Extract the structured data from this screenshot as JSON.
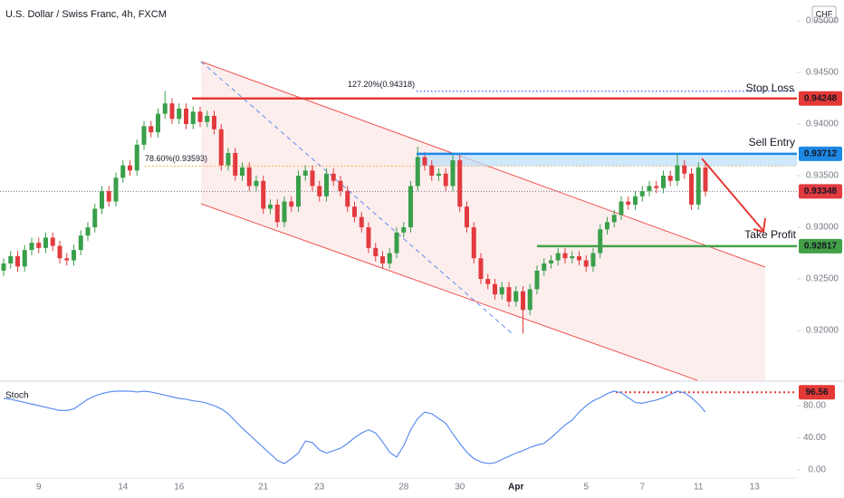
{
  "chart_data": [
    {
      "type": "candlestick",
      "title": "U.S. Dollar / Swiss Franc, 4h, FXCM",
      "currency": "CHF",
      "up_color": "#3a9f4a",
      "down_color": "#e23b3f",
      "categories": [
        null,
        null,
        null,
        null,
        null,
        "9",
        null,
        null,
        null,
        null,
        null,
        null,
        null,
        null,
        null,
        null,
        null,
        "14",
        null,
        null,
        null,
        null,
        null,
        null,
        null,
        "16",
        null,
        null,
        null,
        null,
        null,
        null,
        null,
        null,
        null,
        null,
        null,
        "21",
        null,
        null,
        null,
        null,
        null,
        null,
        null,
        "23",
        null,
        null,
        null,
        null,
        null,
        null,
        null,
        null,
        null,
        null,
        null,
        "28",
        null,
        null,
        null,
        null,
        null,
        null,
        null,
        "30",
        null,
        null,
        null,
        null,
        null,
        null,
        null,
        "Apr",
        null,
        null,
        null,
        null,
        null,
        null,
        null,
        null,
        null,
        "5",
        null,
        null,
        null,
        null,
        null,
        null,
        null,
        "7",
        null,
        null,
        null,
        null,
        null,
        null,
        null,
        "11",
        null,
        null,
        null,
        null,
        null,
        null,
        null,
        "13"
      ],
      "open": [
        0.9258,
        0.9265,
        0.9272,
        0.9262,
        0.9278,
        0.9285,
        0.928,
        0.929,
        0.9282,
        0.927,
        0.9268,
        0.9278,
        0.9292,
        0.93,
        0.9318,
        0.9335,
        0.9325,
        0.9348,
        0.936,
        0.9355,
        0.938,
        0.9398,
        0.9392,
        0.941,
        0.942,
        0.9405,
        0.9415,
        0.94,
        0.9412,
        0.9402,
        0.9408,
        0.9395,
        0.936,
        0.9372,
        0.935,
        0.9358,
        0.934,
        0.9345,
        0.9318,
        0.9322,
        0.9305,
        0.9325,
        0.932,
        0.935,
        0.9355,
        0.934,
        0.933,
        0.9352,
        0.9345,
        0.9335,
        0.932,
        0.931,
        0.93,
        0.928,
        0.9272,
        0.9265,
        0.9275,
        0.9295,
        0.93,
        0.934,
        0.9368,
        0.936,
        0.935,
        0.9352,
        0.934,
        0.9365,
        0.932,
        0.93,
        0.927,
        0.925,
        0.9245,
        0.9235,
        0.9242,
        0.9228,
        0.9238,
        0.922,
        0.924,
        0.9258,
        0.9265,
        0.9268,
        0.9275,
        0.927,
        0.9272,
        0.9268,
        0.9262,
        0.9275,
        0.9298,
        0.9305,
        0.9312,
        0.9325,
        0.9322,
        0.933,
        0.9335,
        0.934,
        0.9338,
        0.935,
        0.9345,
        0.936,
        0.9352,
        0.9322,
        0.9358,
        null,
        null,
        null,
        null,
        null,
        null,
        null
      ],
      "high": [
        0.927,
        0.9277,
        0.9277,
        0.9283,
        0.929,
        0.929,
        0.9295,
        0.9295,
        0.9287,
        0.9275,
        0.9283,
        0.9297,
        0.9305,
        0.9323,
        0.934,
        0.934,
        0.9353,
        0.9365,
        0.9365,
        0.9385,
        0.9403,
        0.9403,
        0.9415,
        0.9432,
        0.9425,
        0.942,
        0.942,
        0.9417,
        0.9417,
        0.9413,
        0.9413,
        0.94,
        0.9377,
        0.9377,
        0.9363,
        0.9363,
        0.935,
        0.935,
        0.9327,
        0.9327,
        0.933,
        0.933,
        0.9355,
        0.936,
        0.936,
        0.9345,
        0.9357,
        0.9357,
        0.935,
        0.934,
        0.9325,
        0.9315,
        0.9305,
        0.9285,
        0.9277,
        0.928,
        0.93,
        0.9305,
        0.9345,
        0.9378,
        0.9373,
        0.9365,
        0.9357,
        0.9357,
        0.9372,
        0.937,
        0.9325,
        0.9305,
        0.9275,
        0.9255,
        0.925,
        0.9247,
        0.9247,
        0.9243,
        0.9243,
        0.9245,
        0.9263,
        0.927,
        0.9273,
        0.928,
        0.928,
        0.9277,
        0.9277,
        0.9273,
        0.928,
        0.9303,
        0.931,
        0.9317,
        0.933,
        0.933,
        0.9335,
        0.934,
        0.9345,
        0.9345,
        0.9355,
        0.9355,
        0.9372,
        0.9365,
        0.9357,
        0.9363,
        0.9363,
        null,
        null,
        null,
        null,
        null,
        null,
        null
      ],
      "low": [
        0.9253,
        0.926,
        0.9257,
        0.9257,
        0.9273,
        0.9275,
        0.9275,
        0.9277,
        0.9265,
        0.9263,
        0.9263,
        0.9273,
        0.9287,
        0.9295,
        0.9313,
        0.932,
        0.932,
        0.9343,
        0.935,
        0.935,
        0.9375,
        0.9387,
        0.9387,
        0.9405,
        0.94,
        0.94,
        0.9395,
        0.9395,
        0.9397,
        0.9397,
        0.939,
        0.9355,
        0.9355,
        0.9345,
        0.9345,
        0.9335,
        0.9335,
        0.9313,
        0.9313,
        0.93,
        0.93,
        0.9315,
        0.9315,
        0.9345,
        0.9335,
        0.9325,
        0.9325,
        0.934,
        0.933,
        0.9315,
        0.9305,
        0.9295,
        0.9275,
        0.9267,
        0.926,
        0.926,
        0.927,
        0.929,
        0.9295,
        0.9335,
        0.9355,
        0.9345,
        0.9345,
        0.9335,
        0.9335,
        0.9315,
        0.9295,
        0.9265,
        0.9245,
        0.924,
        0.923,
        0.923,
        0.9223,
        0.9223,
        0.9197,
        0.9215,
        0.9235,
        0.9253,
        0.926,
        0.9263,
        0.9265,
        0.9265,
        0.9263,
        0.9257,
        0.9257,
        0.927,
        0.9293,
        0.93,
        0.9307,
        0.9317,
        0.9317,
        0.9325,
        0.933,
        0.9333,
        0.9333,
        0.934,
        0.934,
        0.9347,
        0.9317,
        0.9317,
        0.933,
        null,
        null,
        null,
        null,
        null,
        null,
        null
      ],
      "close": [
        0.9265,
        0.9272,
        0.9262,
        0.9278,
        0.9285,
        0.928,
        0.929,
        0.9282,
        0.927,
        0.9268,
        0.9278,
        0.9292,
        0.93,
        0.9318,
        0.9335,
        0.9325,
        0.9348,
        0.936,
        0.9355,
        0.938,
        0.9398,
        0.9392,
        0.941,
        0.942,
        0.9405,
        0.9415,
        0.94,
        0.9412,
        0.9402,
        0.9408,
        0.9395,
        0.936,
        0.9372,
        0.935,
        0.9358,
        0.934,
        0.9345,
        0.9318,
        0.9322,
        0.9305,
        0.9325,
        0.932,
        0.935,
        0.9355,
        0.934,
        0.933,
        0.9352,
        0.9345,
        0.9335,
        0.932,
        0.931,
        0.93,
        0.928,
        0.9272,
        0.9265,
        0.9275,
        0.9295,
        0.93,
        0.934,
        0.9368,
        0.936,
        0.935,
        0.9352,
        0.934,
        0.9365,
        0.932,
        0.93,
        0.927,
        0.925,
        0.9245,
        0.9235,
        0.9242,
        0.9228,
        0.9238,
        0.922,
        0.924,
        0.9258,
        0.9265,
        0.9268,
        0.9275,
        0.927,
        0.9272,
        0.9268,
        0.9262,
        0.9275,
        0.9298,
        0.9305,
        0.9312,
        0.9325,
        0.9322,
        0.933,
        0.9335,
        0.934,
        0.9338,
        0.935,
        0.9345,
        0.936,
        0.9352,
        0.9322,
        0.9358,
        0.93348,
        null,
        null,
        null,
        null,
        null,
        null,
        null
      ],
      "ylim": [
        0.91518,
        0.95202
      ],
      "yticks": [
        {
          "value": 0.92,
          "label": "0.92000"
        },
        {
          "value": 0.925,
          "label": "0.92500"
        },
        {
          "value": 0.93,
          "label": "0.93000"
        },
        {
          "value": 0.935,
          "label": "0.93500"
        },
        {
          "value": 0.94,
          "label": "0.94000"
        },
        {
          "value": 0.945,
          "label": "0.94500"
        },
        {
          "value": 0.95,
          "label": "0.95000"
        }
      ],
      "grid": false,
      "last_price": 0.93348,
      "last_color": "#e23b3f",
      "levels": [
        {
          "label": "Stop Loss",
          "value": 0.94248,
          "color": "#e53935"
        },
        {
          "label": "Sell Entry",
          "value": 0.93712,
          "color": "#1e88e5"
        },
        {
          "label": "Take Profit",
          "value": 0.92817,
          "color": "#43a047"
        }
      ],
      "fib_levels": [
        {
          "label": "127.20%(0.94318)",
          "value": 0.94318,
          "color": "#2962ff"
        },
        {
          "label": "78.60%(0.93593)",
          "value": 0.93593,
          "color": "#f9a825"
        }
      ]
    },
    {
      "type": "line",
      "title": "Stoch",
      "color": "#5b8def",
      "values": [
        89,
        88,
        86,
        84,
        82,
        80,
        78,
        76,
        74,
        74,
        76,
        82,
        88,
        92,
        95,
        97,
        98,
        98,
        98,
        97,
        98,
        97,
        95,
        93,
        91,
        89,
        88,
        86,
        85,
        83,
        80,
        76,
        70,
        61,
        52,
        44,
        36,
        28,
        20,
        12,
        8,
        14,
        21,
        36,
        34,
        25,
        21,
        24,
        27,
        33,
        40,
        46,
        50,
        46,
        35,
        22,
        16,
        30,
        50,
        64,
        72,
        70,
        64,
        58,
        45,
        33,
        22,
        14,
        10,
        8,
        9,
        13,
        17,
        21,
        24,
        28,
        31,
        33,
        40,
        48,
        56,
        62,
        72,
        80,
        86,
        90,
        95,
        98,
        96,
        90,
        84,
        83,
        85,
        87,
        90,
        94,
        98,
        96,
        90,
        82,
        72,
        null,
        null,
        null,
        null,
        null,
        null,
        null
      ],
      "ylim": [
        -10.1,
        109.3
      ],
      "yticks": [
        {
          "value": 0,
          "label": "0.00"
        },
        {
          "value": 40,
          "label": "40.00"
        },
        {
          "value": 80,
          "label": "80.00"
        }
      ],
      "level": 96.56,
      "level_color": "#e53935"
    }
  ]
}
